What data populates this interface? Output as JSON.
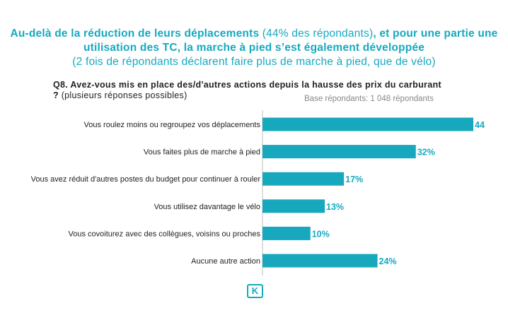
{
  "headline": {
    "part1": "Au-delà de la réduction de leurs déplacements",
    "part2": " (44% des répondants)",
    "part3": ", et pour une partie une utilisation des TC, la marche à pied s’est également développée",
    "part4": " (2 fois de répondants déclarent faire plus de marche à pied, que de vélo)"
  },
  "question": {
    "text": "Q8. Avez-vous mis en place des/d'autres actions depuis la hausse des prix du carburant ?",
    "note": " (plusieurs réponses possibles)"
  },
  "base_label": "Base répondants: 1 048 répondants",
  "colors": {
    "accent": "#15a9c0",
    "bar": "#18a8be",
    "text": "#222222"
  },
  "logo_icon": "k-logo-icon",
  "chart_data": {
    "type": "bar",
    "orientation": "horizontal",
    "categories": [
      "Vous roulez moins ou regroupez vos déplacements",
      "Vous faites plus de marche à pied",
      "Vous avez réduit d'autres postes du budget pour continuer à rouler",
      "Vous utilisez davantage le vélo",
      "Vous covoiturez avec des collègues, voisins ou proches",
      "Aucune autre action"
    ],
    "values": [
      44,
      32,
      17,
      13,
      10,
      24
    ],
    "labels": [
      "44",
      "32%",
      "17%",
      "13%",
      "10%",
      "24%"
    ],
    "xlim": [
      0,
      44
    ],
    "grid": false
  }
}
